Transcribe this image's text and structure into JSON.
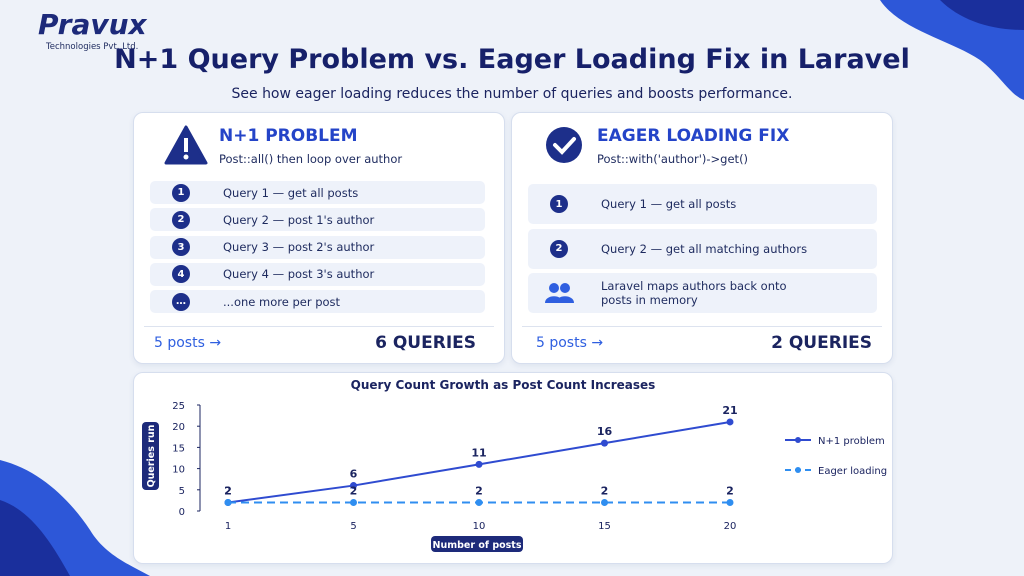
{
  "header": {
    "logo": "Pravux",
    "tagline": "Technologies Pvt. Ltd.",
    "title": "N+1 Query Problem vs. Eager Loading Fix in Laravel",
    "subtitle": "See how eager loading reduces the number of queries and boosts performance."
  },
  "problem": {
    "heading": "N+1 PROBLEM",
    "code": "Post::all() then loop over author",
    "steps": [
      {
        "badge": "1",
        "text": "Query 1 — get all posts"
      },
      {
        "badge": "2",
        "text": "Query 2 — post 1's author"
      },
      {
        "badge": "3",
        "text": "Query 3 — post 2's author"
      },
      {
        "badge": "4",
        "text": "Query 4 — post 3's author"
      },
      {
        "badge": "…",
        "text": "...one more per post"
      }
    ],
    "footer_left": "5 posts →",
    "footer_right": "6 QUERIES"
  },
  "fix": {
    "heading": "EAGER LOADING FIX",
    "code": "Post::with('author')->get()",
    "steps": [
      {
        "badge": "1",
        "text": "Query 1 — get all posts"
      },
      {
        "badge": "2",
        "text": "Query 2 — get all matching authors"
      },
      {
        "text": "Laravel maps authors back onto posts in memory"
      }
    ],
    "footer_left": "5 posts →",
    "footer_right": "2 QUERIES"
  },
  "chart_data": {
    "type": "line",
    "title": "Query Count Growth as Post Count Increases",
    "x_label": "Number of posts",
    "y_label": "Queries run",
    "categories": [
      "1",
      "5",
      "10",
      "15",
      "20"
    ],
    "series": [
      {
        "name": "N+1 problem",
        "color": "#2f4bd0",
        "line_style": "solid",
        "values": [
          2,
          6,
          11,
          16,
          21
        ]
      },
      {
        "name": "Eager loading",
        "color": "#2f8ef0",
        "line_style": "dashed",
        "values": [
          2,
          2,
          2,
          2,
          2
        ]
      }
    ],
    "ylim": [
      0,
      25
    ],
    "yticks": [
      0,
      5,
      10,
      15,
      20,
      25
    ],
    "grid": false,
    "legend": "right"
  }
}
